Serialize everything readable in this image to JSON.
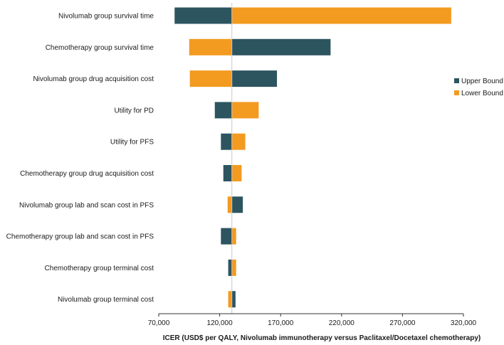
{
  "chart_data": {
    "type": "bar",
    "subtype": "tornado",
    "title": "",
    "xlabel": "ICER (USD$ per QALY, Nivolumab immunotherapy versus Paclitaxel/Docetaxel chemotherapy)",
    "ylabel": "",
    "xlim": [
      70000,
      320000
    ],
    "xticks": [
      70000,
      120000,
      170000,
      220000,
      270000,
      320000
    ],
    "xtick_labels": [
      "70,000",
      "120,000",
      "170,000",
      "220,000",
      "270,000",
      "320,000"
    ],
    "base_value": 130000,
    "categories": [
      "Nivolumab group survival time",
      "Chemotherapy group survival time",
      "Nivolumab group drug acquisition cost",
      "Utility for PD",
      "Utility for PFS",
      "Chemotherapy group drug acquisition cost",
      "Nivolumab group lab and scan cost in PFS",
      "Chemotherapy group lab and scan cost in PFS",
      "Chemotherapy group terminal cost",
      "Nivolumab group terminal cost"
    ],
    "series": [
      {
        "name": "Upper Bound",
        "color": "#2d5560",
        "values": [
          83000,
          211000,
          167000,
          116000,
          121000,
          123000,
          139000,
          121000,
          127000,
          133000
        ]
      },
      {
        "name": "Lower Bound",
        "color": "#f39a21",
        "values": [
          310000,
          95000,
          95500,
          152000,
          141000,
          138000,
          126500,
          133500,
          133500,
          127000
        ]
      }
    ],
    "legend_position": "right",
    "grid": false
  }
}
